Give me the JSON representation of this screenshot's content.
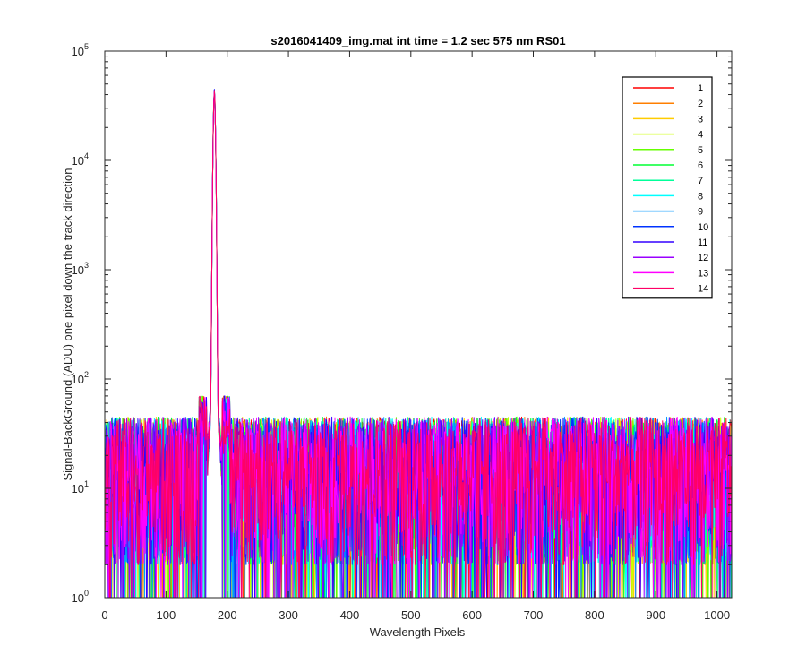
{
  "chart_data": {
    "type": "line",
    "title": "s2016041409_img.mat int time = 1.2 sec  575 nm RS01",
    "xlabel": "Wavelength Pixels",
    "ylabel": "Signal-BackGround (ADU) one pixel down the track direction",
    "xlim": [
      0,
      1024
    ],
    "ylim": [
      1,
      100000
    ],
    "yscale": "log",
    "grid": false,
    "legend_position": "top-right",
    "x_ticks": [
      "0",
      "100",
      "200",
      "300",
      "400",
      "500",
      "600",
      "700",
      "800",
      "900",
      "1000"
    ],
    "x_tick_values": [
      0,
      100,
      200,
      300,
      400,
      500,
      600,
      700,
      800,
      900,
      1000
    ],
    "y_ticks": [
      {
        "base": "10",
        "exp": "0",
        "value": 1
      },
      {
        "base": "10",
        "exp": "1",
        "value": 10
      },
      {
        "base": "10",
        "exp": "2",
        "value": 100
      },
      {
        "base": "10",
        "exp": "3",
        "value": 1000
      },
      {
        "base": "10",
        "exp": "4",
        "value": 10000
      },
      {
        "base": "10",
        "exp": "5",
        "value": 100000
      }
    ],
    "peak": {
      "x": 179,
      "y": 45000
    },
    "noise_floor_range": [
      2,
      45
    ],
    "series": [
      {
        "name": "1",
        "color": "#ff0000"
      },
      {
        "name": "2",
        "color": "#ff7f00"
      },
      {
        "name": "3",
        "color": "#ffcc00"
      },
      {
        "name": "4",
        "color": "#ccff00"
      },
      {
        "name": "5",
        "color": "#66ff00"
      },
      {
        "name": "6",
        "color": "#00ff33"
      },
      {
        "name": "7",
        "color": "#00ff99"
      },
      {
        "name": "8",
        "color": "#00ffff"
      },
      {
        "name": "9",
        "color": "#0099ff"
      },
      {
        "name": "10",
        "color": "#0033ff"
      },
      {
        "name": "11",
        "color": "#3300ff"
      },
      {
        "name": "12",
        "color": "#9900ff"
      },
      {
        "name": "13",
        "color": "#ff00ff"
      },
      {
        "name": "14",
        "color": "#ff0066"
      }
    ]
  }
}
